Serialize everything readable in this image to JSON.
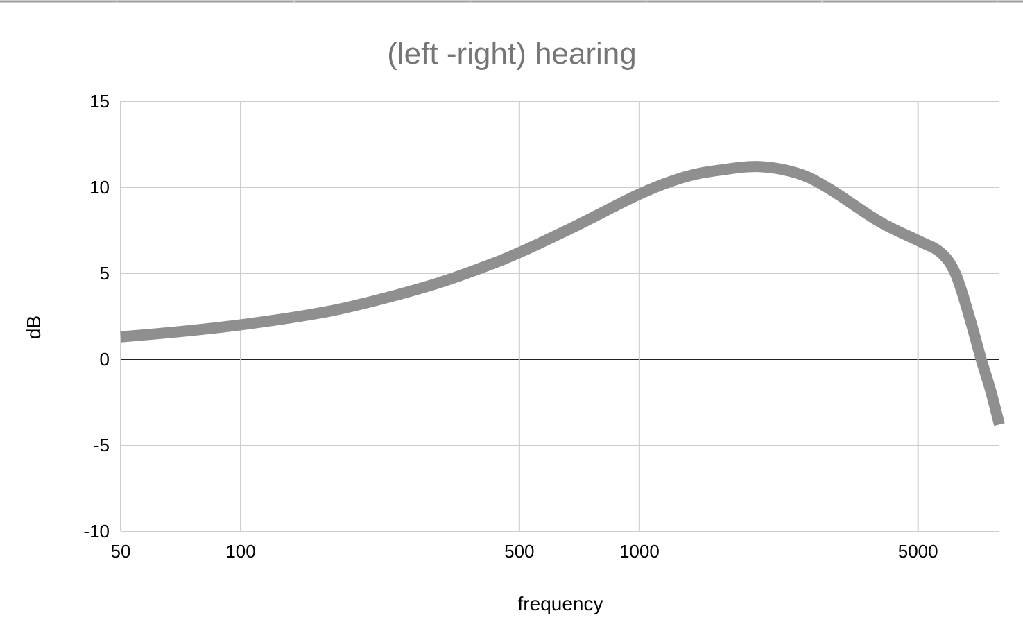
{
  "chart_data": {
    "type": "line",
    "title": "(left -right) hearing",
    "xlabel": "frequency",
    "ylabel": "dB",
    "x_scale": "log",
    "xlim": [
      50,
      8000
    ],
    "ylim": [
      -10,
      15
    ],
    "x_ticks": [
      50,
      100,
      500,
      1000,
      5000
    ],
    "y_ticks": [
      15,
      10,
      5,
      0,
      -5,
      -10
    ],
    "grid": true,
    "legend": "none",
    "series": [
      {
        "color": "#8f8f8f",
        "x": [
          50,
          70,
          100,
          150,
          200,
          300,
          400,
          500,
          700,
          1000,
          1300,
          1600,
          2000,
          2500,
          3000,
          4000,
          5000,
          5700,
          6200,
          6700,
          7200,
          7600,
          8000
        ],
        "y": [
          1.3,
          1.6,
          2.0,
          2.6,
          3.2,
          4.3,
          5.3,
          6.2,
          7.8,
          9.6,
          10.6,
          11.0,
          11.2,
          10.8,
          9.9,
          8.0,
          6.9,
          6.2,
          5.0,
          2.6,
          0.0,
          -1.8,
          -3.8
        ]
      }
    ]
  }
}
